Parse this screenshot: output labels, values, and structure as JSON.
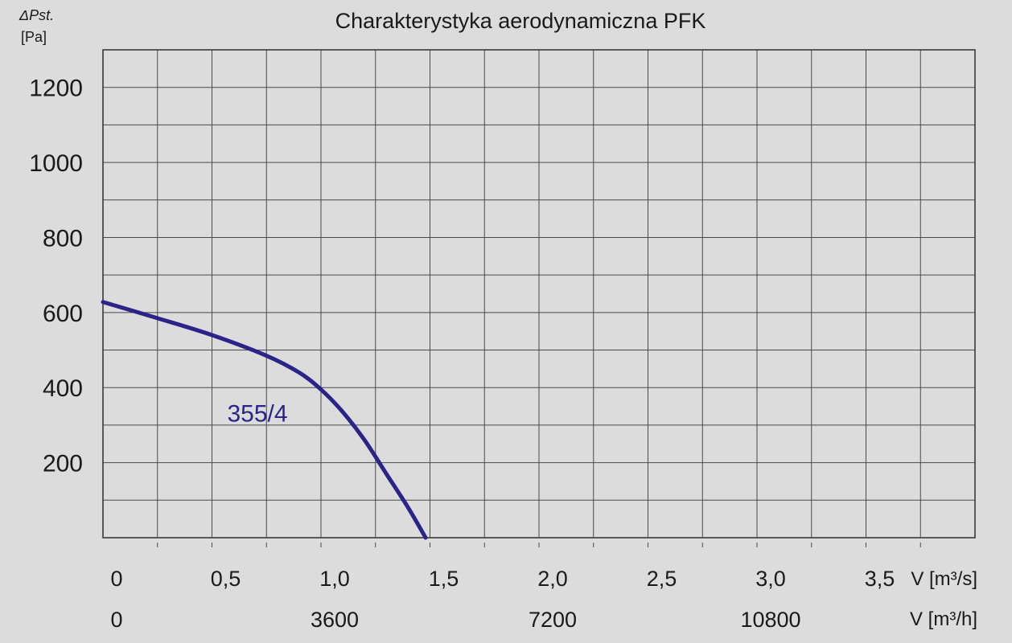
{
  "chart_data": {
    "type": "line",
    "title": "Charakterystyka aerodynamiczna PFK",
    "ylabel_symbol": "ΔPst.",
    "ylabel_unit": "[Pa]",
    "ylim": [
      0,
      1300
    ],
    "yticks": [
      200,
      400,
      600,
      800,
      1000,
      1200
    ],
    "xlim": [
      0,
      4
    ],
    "xticks_m3s": [
      {
        "v": 0,
        "label": "0"
      },
      {
        "v": 0.5,
        "label": "0,5"
      },
      {
        "v": 1.0,
        "label": "1,0"
      },
      {
        "v": 1.5,
        "label": "1,5"
      },
      {
        "v": 2.0,
        "label": "2,0"
      },
      {
        "v": 2.5,
        "label": "2,5"
      },
      {
        "v": 3.0,
        "label": "3,0"
      },
      {
        "v": 3.5,
        "label": "3,5"
      }
    ],
    "xticks_m3h": [
      {
        "v": 0,
        "label": "0"
      },
      {
        "v": 1.0,
        "label": "3600"
      },
      {
        "v": 2.0,
        "label": "7200"
      },
      {
        "v": 3.0,
        "label": "10800"
      }
    ],
    "xunit_m3s": "V [m³/s]",
    "xunit_m3h": "V [m³/h]",
    "grid": true,
    "series": [
      {
        "name": "355/4",
        "color": "#2b2387",
        "x": [
          0,
          0.25,
          0.5,
          0.75,
          0.9,
          1.0,
          1.1,
          1.2,
          1.3,
          1.4,
          1.48
        ],
        "y": [
          628,
          585,
          540,
          485,
          440,
          395,
          335,
          260,
          170,
          80,
          0
        ]
      }
    ]
  }
}
